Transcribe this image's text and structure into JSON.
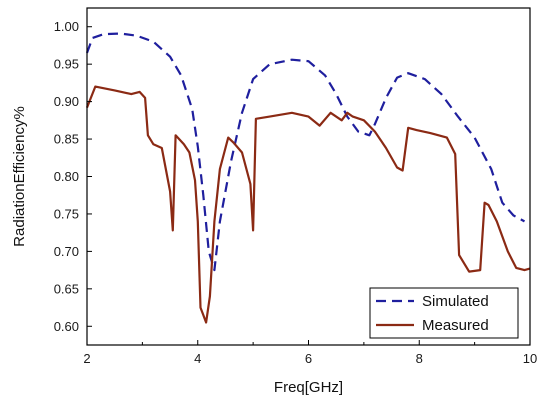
{
  "chart_data": {
    "type": "line",
    "title": "",
    "xlabel": "Freq[GHz]",
    "ylabel": "RadiationEfficiency%",
    "xlim": [
      2,
      10
    ],
    "ylim": [
      0.575,
      1.025
    ],
    "xticks": [
      2,
      4,
      6,
      8,
      10
    ],
    "yticks": [
      0.6,
      0.65,
      0.7,
      0.75,
      0.8,
      0.85,
      0.9,
      0.95,
      1.0
    ],
    "xtick_labels": [
      "2",
      "4",
      "6",
      "8",
      "10"
    ],
    "ytick_labels": [
      "0.60",
      "0.65",
      "0.70",
      "0.75",
      "0.80",
      "0.85",
      "0.90",
      "0.95",
      "1.00"
    ],
    "grid": false,
    "legend_position": "bottom-right",
    "series": [
      {
        "name": "Simulated",
        "color": "#1f1f9e",
        "style": "dashed",
        "x": [
          2.0,
          2.1,
          2.3,
          2.6,
          2.9,
          3.2,
          3.5,
          3.7,
          3.9,
          4.0,
          4.1,
          4.2,
          4.3,
          4.4,
          4.6,
          4.8,
          5.0,
          5.3,
          5.7,
          6.0,
          6.3,
          6.5,
          6.7,
          6.9,
          7.1,
          7.2,
          7.4,
          7.6,
          7.8,
          8.1,
          8.4,
          8.7,
          9.0,
          9.3,
          9.5,
          9.7,
          9.9
        ],
        "y": [
          0.965,
          0.985,
          0.99,
          0.991,
          0.988,
          0.98,
          0.96,
          0.935,
          0.89,
          0.84,
          0.775,
          0.7,
          0.675,
          0.74,
          0.82,
          0.885,
          0.93,
          0.95,
          0.956,
          0.954,
          0.935,
          0.91,
          0.88,
          0.86,
          0.855,
          0.87,
          0.905,
          0.932,
          0.938,
          0.93,
          0.91,
          0.88,
          0.852,
          0.81,
          0.765,
          0.748,
          0.74
        ]
      },
      {
        "name": "Measured",
        "color": "#8b2a14",
        "style": "solid",
        "x": [
          2.0,
          2.15,
          2.5,
          2.8,
          2.95,
          3.05,
          3.1,
          3.2,
          3.35,
          3.5,
          3.55,
          3.6,
          3.75,
          3.85,
          3.95,
          4.0,
          4.05,
          4.1,
          4.15,
          4.22,
          4.3,
          4.4,
          4.55,
          4.65,
          4.8,
          4.95,
          5.0,
          5.05,
          5.3,
          5.7,
          6.0,
          6.2,
          6.4,
          6.6,
          6.7,
          6.8,
          7.0,
          7.2,
          7.4,
          7.6,
          7.7,
          7.8,
          7.95,
          8.2,
          8.5,
          8.65,
          8.72,
          8.9,
          9.1,
          9.18,
          9.25,
          9.4,
          9.6,
          9.75,
          9.9,
          10.0
        ],
        "y": [
          0.892,
          0.92,
          0.915,
          0.91,
          0.913,
          0.905,
          0.855,
          0.843,
          0.838,
          0.78,
          0.728,
          0.855,
          0.843,
          0.832,
          0.795,
          0.74,
          0.625,
          0.615,
          0.605,
          0.64,
          0.74,
          0.81,
          0.852,
          0.845,
          0.832,
          0.79,
          0.728,
          0.877,
          0.88,
          0.885,
          0.88,
          0.868,
          0.885,
          0.875,
          0.885,
          0.88,
          0.875,
          0.86,
          0.838,
          0.812,
          0.808,
          0.865,
          0.862,
          0.858,
          0.852,
          0.83,
          0.695,
          0.673,
          0.675,
          0.765,
          0.762,
          0.74,
          0.7,
          0.678,
          0.675,
          0.677
        ]
      }
    ]
  }
}
